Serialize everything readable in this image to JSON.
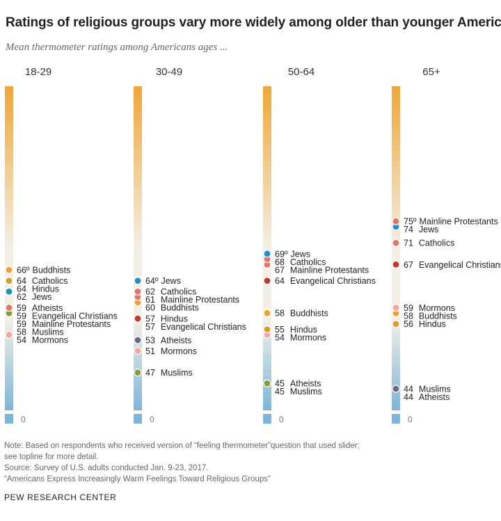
{
  "title": "Ratings of religious groups vary more widely among older than younger Americans",
  "subtitle": "Mean thermometer ratings among Americans ages ...",
  "colors": {
    "bar_top": "#f0a638",
    "bar_mid": "#f2f0e6",
    "bar_bottom": "#7db6d8",
    "Buddhists": "#f0a030",
    "Catholics": "#e2746a",
    "Hindus": "#d4a02a",
    "Jews": "#1a93c4",
    "Atheists": "#6b6880",
    "Evangelical Christians": "#c0392b",
    "Mainline Protestants": "#e2746a",
    "Muslims": "#8a9a3c",
    "Mormons": "#f0a8a0"
  },
  "chart_data": {
    "type": "scatter",
    "scale_max": 100,
    "zero_label": "0",
    "degree_symbol": "º",
    "groups": [
      {
        "name": "18-29",
        "points": [
          {
            "label": "Buddhists",
            "value": 66
          },
          {
            "label": "Catholics",
            "value": 64
          },
          {
            "label": "Hindus",
            "value": 64
          },
          {
            "label": "Jews",
            "value": 62
          },
          {
            "label": "Atheists",
            "value": 59
          },
          {
            "label": "Evangelical Christians",
            "value": 59
          },
          {
            "label": "Mainline Protestants",
            "value": 59
          },
          {
            "label": "Muslims",
            "value": 58
          },
          {
            "label": "Mormons",
            "value": 54
          }
        ]
      },
      {
        "name": "30-49",
        "points": [
          {
            "label": "Jews",
            "value": 64
          },
          {
            "label": "Catholics",
            "value": 62
          },
          {
            "label": "Mainline Protestants",
            "value": 61
          },
          {
            "label": "Buddhists",
            "value": 60
          },
          {
            "label": "Hindus",
            "value": 57
          },
          {
            "label": "Evangelical Christians",
            "value": 57
          },
          {
            "label": "Atheists",
            "value": 53
          },
          {
            "label": "Mormons",
            "value": 51
          },
          {
            "label": "Muslims",
            "value": 47
          }
        ]
      },
      {
        "name": "50-64",
        "points": [
          {
            "label": "Jews",
            "value": 69
          },
          {
            "label": "Catholics",
            "value": 68
          },
          {
            "label": "Mainline Protestants",
            "value": 67
          },
          {
            "label": "Evangelical Christians",
            "value": 64
          },
          {
            "label": "Buddhists",
            "value": 58
          },
          {
            "label": "Hindus",
            "value": 55
          },
          {
            "label": "Mormons",
            "value": 54
          },
          {
            "label": "Atheists",
            "value": 45
          },
          {
            "label": "Muslims",
            "value": 45
          }
        ]
      },
      {
        "name": "65+",
        "points": [
          {
            "label": "Mainline Protestants",
            "value": 75
          },
          {
            "label": "Jews",
            "value": 74
          },
          {
            "label": "Catholics",
            "value": 71
          },
          {
            "label": "Evangelical Christians",
            "value": 67
          },
          {
            "label": "Mormons",
            "value": 59
          },
          {
            "label": "Buddhists",
            "value": 58
          },
          {
            "label": "Hindus",
            "value": 56
          },
          {
            "label": "Muslims",
            "value": 44
          },
          {
            "label": "Atheists",
            "value": 44
          }
        ]
      }
    ]
  },
  "notes": [
    "Note: Based on respondents who received version of “feeling thermometer”question that used slider;",
    "see topline for more detail.",
    "Source: Survey of U.S. adults conducted Jan. 9-23, 2017.",
    "“Americans Express Increasingly Warm Feelings Toward Religious Groups”"
  ],
  "brand": "PEW RESEARCH CENTER"
}
